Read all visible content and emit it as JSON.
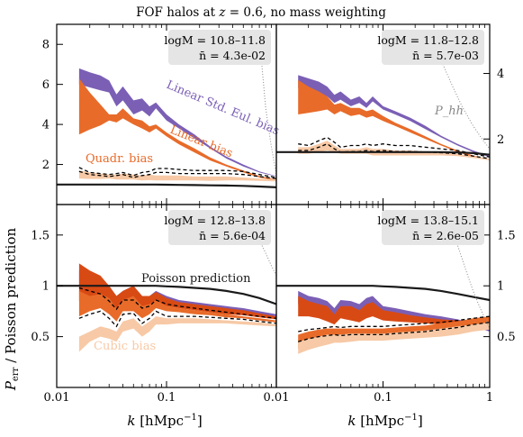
{
  "figure": {
    "title": "FOF halos at z = 0.6, no mass weighting",
    "ylabel": "P_err / Poisson prediction",
    "xlabel": "k [hMpc^-1]"
  },
  "colors": {
    "purple": "#7b5fb5",
    "orange": "#e86b2a",
    "darkorange": "#d84a14",
    "lightorange": "#f7c9a6",
    "poisson": "#1a1a1a",
    "phh": "#888888",
    "infobox": "#e5e5e5"
  },
  "chart_data": [
    {
      "panel": "top-left",
      "type": "area",
      "mass_range": "logM = 10.8–11.8",
      "nbar": "n̄ = 4.3e-02",
      "xscale": "log",
      "xlim": [
        0.01,
        1
      ],
      "ylim": [
        0,
        9
      ],
      "yticks": [
        2,
        4,
        6,
        8
      ],
      "ytick_side": "left",
      "annotations": [
        {
          "text": "Linear Std. Eul. bias",
          "color": "purple"
        },
        {
          "text": "Linear bias",
          "color": "orange"
        },
        {
          "text": "Quadr. bias",
          "color": "orange"
        }
      ],
      "x": [
        0.016,
        0.02,
        0.025,
        0.03,
        0.035,
        0.04,
        0.05,
        0.06,
        0.07,
        0.08,
        0.1,
        0.13,
        0.18,
        0.25,
        0.35,
        0.5,
        0.7,
        1.0
      ],
      "series": [
        {
          "name": "Linear Std. Eul. bias",
          "color": "purple",
          "lower": [
            6.0,
            5.85,
            5.7,
            5.6,
            4.9,
            5.2,
            4.5,
            4.7,
            4.4,
            4.8,
            4.2,
            3.8,
            3.3,
            2.8,
            2.3,
            1.9,
            1.6,
            1.4
          ],
          "upper": [
            6.8,
            6.6,
            6.45,
            6.2,
            5.5,
            5.9,
            5.2,
            5.3,
            4.9,
            5.1,
            4.5,
            4.0,
            3.5,
            2.9,
            2.4,
            2.0,
            1.65,
            1.42
          ]
        },
        {
          "name": "Linear bias",
          "color": "orange",
          "lower": [
            3.5,
            3.75,
            3.95,
            4.2,
            4.1,
            4.3,
            4.0,
            3.8,
            3.6,
            3.8,
            3.4,
            3.0,
            2.6,
            2.2,
            1.9,
            1.6,
            1.35,
            1.2
          ],
          "upper": [
            6.3,
            5.6,
            5.0,
            4.5,
            4.5,
            4.8,
            4.3,
            4.2,
            3.9,
            4.0,
            3.6,
            3.2,
            2.8,
            2.35,
            2.0,
            1.7,
            1.42,
            1.25
          ]
        },
        {
          "name": "Quadr. bias",
          "color": "lightorange",
          "lower": [
            1.3,
            1.28,
            1.28,
            1.3,
            1.25,
            1.25,
            1.25,
            1.2,
            1.22,
            1.2,
            1.2,
            1.2,
            1.2,
            1.18,
            1.2,
            1.2,
            1.18,
            1.15
          ],
          "upper": [
            1.7,
            1.6,
            1.55,
            1.5,
            1.5,
            1.55,
            1.5,
            1.45,
            1.5,
            1.45,
            1.45,
            1.45,
            1.4,
            1.4,
            1.4,
            1.35,
            1.3,
            1.25
          ]
        }
      ],
      "dashed": [
        {
          "values": [
            1.85,
            1.6,
            1.55,
            1.5,
            1.55,
            1.6,
            1.45,
            1.6,
            1.65,
            1.8,
            1.8,
            1.75,
            1.7,
            1.7,
            1.7,
            1.65,
            1.5,
            1.35
          ]
        },
        {
          "values": [
            1.65,
            1.5,
            1.45,
            1.4,
            1.45,
            1.5,
            1.35,
            1.45,
            1.5,
            1.6,
            1.6,
            1.55,
            1.55,
            1.55,
            1.55,
            1.5,
            1.4,
            1.3
          ]
        }
      ],
      "poisson": [
        1.0,
        1.0,
        1.0,
        1.0,
        1.0,
        1.0,
        1.0,
        1.0,
        1.0,
        1.0,
        0.99,
        0.98,
        0.97,
        0.96,
        0.95,
        0.93,
        0.9,
        0.86
      ],
      "phh": {
        "x": [
          0.7,
          0.75,
          0.8,
          0.9,
          1.0
        ],
        "values": [
          8.4,
          6.5,
          4.8,
          2.9,
          1.5
        ]
      }
    },
    {
      "panel": "top-right",
      "type": "area",
      "mass_range": "logM = 11.8–12.8",
      "nbar": "n̄ = 5.7e-03",
      "xscale": "log",
      "xlim": [
        0.01,
        1
      ],
      "ylim": [
        0,
        5.5
      ],
      "yticks": [
        2,
        4
      ],
      "ytick_side": "right",
      "annotations": [
        {
          "text": "P_hh",
          "color": "phh"
        }
      ],
      "x": [
        0.016,
        0.02,
        0.025,
        0.03,
        0.035,
        0.04,
        0.05,
        0.06,
        0.07,
        0.08,
        0.1,
        0.13,
        0.18,
        0.25,
        0.35,
        0.5,
        0.7,
        1.0
      ],
      "series": [
        {
          "name": "Linear Std. Eul. bias",
          "color": "purple",
          "lower": [
            3.55,
            3.45,
            3.4,
            3.3,
            3.1,
            3.2,
            3.0,
            3.1,
            2.95,
            3.15,
            2.9,
            2.75,
            2.55,
            2.3,
            2.05,
            1.8,
            1.6,
            1.45
          ],
          "upper": [
            3.95,
            3.85,
            3.75,
            3.6,
            3.35,
            3.45,
            3.2,
            3.3,
            3.1,
            3.3,
            3.0,
            2.85,
            2.65,
            2.4,
            2.1,
            1.85,
            1.65,
            1.48
          ]
        },
        {
          "name": "Linear bias",
          "color": "orange",
          "lower": [
            2.75,
            2.8,
            2.85,
            2.9,
            2.75,
            2.85,
            2.7,
            2.75,
            2.65,
            2.7,
            2.55,
            2.4,
            2.2,
            2.0,
            1.8,
            1.6,
            1.45,
            1.35
          ],
          "upper": [
            3.8,
            3.6,
            3.45,
            3.3,
            3.05,
            3.1,
            2.95,
            2.95,
            2.85,
            2.9,
            2.7,
            2.5,
            2.3,
            2.08,
            1.85,
            1.65,
            1.5,
            1.38
          ]
        },
        {
          "name": "Quadr. bias",
          "color": "lightorange",
          "lower": [
            1.55,
            1.55,
            1.6,
            1.65,
            1.6,
            1.55,
            1.55,
            1.55,
            1.55,
            1.5,
            1.5,
            1.5,
            1.5,
            1.5,
            1.5,
            1.48,
            1.42,
            1.35
          ],
          "upper": [
            1.75,
            1.75,
            1.85,
            1.95,
            1.8,
            1.7,
            1.7,
            1.7,
            1.75,
            1.7,
            1.7,
            1.65,
            1.65,
            1.62,
            1.6,
            1.55,
            1.48,
            1.4
          ]
        }
      ],
      "dashed": [
        {
          "values": [
            1.85,
            1.8,
            1.95,
            2.05,
            1.9,
            1.75,
            1.8,
            1.8,
            1.85,
            1.8,
            1.85,
            1.8,
            1.8,
            1.75,
            1.7,
            1.65,
            1.55,
            1.45
          ]
        },
        {
          "values": [
            1.65,
            1.65,
            1.75,
            1.85,
            1.7,
            1.6,
            1.62,
            1.62,
            1.65,
            1.62,
            1.65,
            1.62,
            1.62,
            1.6,
            1.58,
            1.55,
            1.48,
            1.4
          ]
        }
      ],
      "poisson": [
        1.6,
        1.6,
        1.6,
        1.6,
        1.6,
        1.6,
        1.6,
        1.6,
        1.6,
        1.6,
        1.6,
        1.6,
        1.6,
        1.6,
        1.6,
        1.59,
        1.57,
        1.52
      ],
      "phh": {
        "x": [
          0.28,
          0.35,
          0.45,
          0.55,
          0.7,
          0.85,
          1.0
        ],
        "values": [
          5.2,
          4.4,
          3.6,
          3.0,
          2.4,
          2.0,
          1.7
        ]
      }
    },
    {
      "panel": "bottom-left",
      "type": "area",
      "mass_range": "logM = 12.8–13.8",
      "nbar": "n̄ = 5.6e-04",
      "xscale": "log",
      "xlim": [
        0.01,
        1
      ],
      "ylim": [
        0,
        1.8
      ],
      "yticks": [
        0.5,
        1,
        1.5
      ],
      "ytick_side": "left",
      "annotations": [
        {
          "text": "Poisson prediction",
          "color": "poisson"
        },
        {
          "text": "Cubic bias",
          "color": "lightorange"
        }
      ],
      "x": [
        0.016,
        0.02,
        0.025,
        0.03,
        0.035,
        0.04,
        0.05,
        0.06,
        0.07,
        0.08,
        0.1,
        0.13,
        0.18,
        0.25,
        0.35,
        0.5,
        0.7,
        1.0
      ],
      "series": [
        {
          "name": "Linear Std. Eul. bias",
          "color": "purple",
          "lower": [
            1.0,
            0.98,
            0.95,
            0.88,
            0.8,
            0.87,
            0.85,
            0.8,
            0.82,
            0.88,
            0.84,
            0.82,
            0.8,
            0.78,
            0.76,
            0.74,
            0.72,
            0.7
          ],
          "upper": [
            1.15,
            1.1,
            1.05,
            1.0,
            0.9,
            0.95,
            1.0,
            0.9,
            0.9,
            0.95,
            0.9,
            0.86,
            0.84,
            0.82,
            0.8,
            0.78,
            0.75,
            0.72
          ]
        },
        {
          "name": "Linear bias",
          "color": "darkorange",
          "lower": [
            0.85,
            0.88,
            0.9,
            0.85,
            0.75,
            0.85,
            0.82,
            0.75,
            0.78,
            0.84,
            0.8,
            0.78,
            0.76,
            0.74,
            0.72,
            0.71,
            0.69,
            0.67
          ],
          "upper": [
            1.22,
            1.15,
            1.1,
            1.0,
            0.9,
            0.95,
            1.0,
            0.9,
            0.9,
            0.94,
            0.88,
            0.84,
            0.82,
            0.8,
            0.78,
            0.76,
            0.73,
            0.7
          ]
        },
        {
          "name": "Quadr. bias",
          "color": "orange",
          "lower": [
            0.7,
            0.75,
            0.78,
            0.72,
            0.65,
            0.75,
            0.75,
            0.68,
            0.72,
            0.78,
            0.75,
            0.74,
            0.72,
            0.71,
            0.69,
            0.68,
            0.66,
            0.64
          ],
          "upper": [
            0.95,
            0.9,
            0.92,
            0.88,
            0.78,
            0.86,
            0.9,
            0.8,
            0.82,
            0.86,
            0.8,
            0.78,
            0.76,
            0.74,
            0.72,
            0.7,
            0.68,
            0.66
          ]
        },
        {
          "name": "Cubic bias",
          "color": "lightorange",
          "lower": [
            0.35,
            0.45,
            0.5,
            0.48,
            0.45,
            0.55,
            0.58,
            0.5,
            0.55,
            0.62,
            0.62,
            0.63,
            0.63,
            0.63,
            0.63,
            0.62,
            0.61,
            0.6
          ],
          "upper": [
            0.5,
            0.55,
            0.6,
            0.58,
            0.55,
            0.65,
            0.68,
            0.6,
            0.65,
            0.7,
            0.68,
            0.68,
            0.68,
            0.67,
            0.66,
            0.65,
            0.64,
            0.62
          ]
        }
      ],
      "dashed": [
        {
          "values": [
            0.98,
            0.95,
            0.92,
            0.85,
            0.77,
            0.86,
            0.86,
            0.78,
            0.8,
            0.86,
            0.82,
            0.8,
            0.78,
            0.76,
            0.74,
            0.72,
            0.7,
            0.68
          ]
        },
        {
          "values": [
            0.68,
            0.72,
            0.75,
            0.68,
            0.6,
            0.72,
            0.73,
            0.63,
            0.68,
            0.75,
            0.7,
            0.7,
            0.7,
            0.69,
            0.68,
            0.67,
            0.65,
            0.63
          ]
        }
      ],
      "poisson": [
        1.0,
        1.0,
        1.0,
        1.0,
        1.0,
        1.0,
        1.0,
        1.0,
        1.0,
        1.0,
        0.995,
        0.99,
        0.98,
        0.97,
        0.95,
        0.92,
        0.88,
        0.82
      ],
      "phh": {
        "x": [
          0.5,
          0.6,
          0.7,
          0.8,
          0.9,
          1.0
        ],
        "values": [
          1.78,
          1.6,
          1.45,
          1.32,
          1.2,
          1.1
        ]
      }
    },
    {
      "panel": "bottom-right",
      "type": "area",
      "mass_range": "logM = 13.8–15.1",
      "nbar": "n̄ = 2.6e-05",
      "xscale": "log",
      "xlim": [
        0.01,
        1
      ],
      "ylim": [
        0,
        1.8
      ],
      "yticks": [
        0.5,
        1,
        1.5
      ],
      "ytick_side": "right",
      "annotations": [],
      "x": [
        0.016,
        0.02,
        0.025,
        0.03,
        0.035,
        0.04,
        0.05,
        0.06,
        0.07,
        0.08,
        0.1,
        0.13,
        0.18,
        0.25,
        0.35,
        0.5,
        0.7,
        1.0
      ],
      "series": [
        {
          "name": "Linear Std. Eul. bias",
          "color": "purple",
          "lower": [
            0.82,
            0.8,
            0.78,
            0.75,
            0.7,
            0.78,
            0.75,
            0.72,
            0.78,
            0.8,
            0.74,
            0.72,
            0.7,
            0.68,
            0.66,
            0.63,
            0.6,
            0.55
          ],
          "upper": [
            0.95,
            0.9,
            0.88,
            0.85,
            0.78,
            0.86,
            0.85,
            0.82,
            0.88,
            0.9,
            0.8,
            0.78,
            0.75,
            0.72,
            0.7,
            0.67,
            0.63,
            0.58
          ]
        },
        {
          "name": "Linear bias",
          "color": "darkorange",
          "lower": [
            0.7,
            0.7,
            0.68,
            0.65,
            0.62,
            0.68,
            0.66,
            0.64,
            0.68,
            0.7,
            0.66,
            0.65,
            0.64,
            0.63,
            0.62,
            0.61,
            0.6,
            0.58
          ],
          "upper": [
            0.9,
            0.85,
            0.82,
            0.8,
            0.72,
            0.8,
            0.8,
            0.76,
            0.82,
            0.84,
            0.76,
            0.74,
            0.71,
            0.69,
            0.67,
            0.66,
            0.65,
            0.63
          ]
        },
        {
          "name": "Quadr. bias",
          "color": "orange",
          "lower": [
            0.38,
            0.42,
            0.45,
            0.47,
            0.48,
            0.48,
            0.49,
            0.5,
            0.5,
            0.5,
            0.5,
            0.51,
            0.52,
            0.53,
            0.55,
            0.58,
            0.6,
            0.62
          ],
          "upper": [
            0.52,
            0.55,
            0.57,
            0.58,
            0.58,
            0.58,
            0.58,
            0.58,
            0.58,
            0.58,
            0.58,
            0.59,
            0.6,
            0.61,
            0.63,
            0.65,
            0.68,
            0.7
          ]
        },
        {
          "name": "Cubic bias",
          "color": "lightorange",
          "lower": [
            0.33,
            0.37,
            0.4,
            0.42,
            0.44,
            0.44,
            0.45,
            0.46,
            0.46,
            0.46,
            0.46,
            0.47,
            0.48,
            0.49,
            0.5,
            0.52,
            0.55,
            0.57
          ],
          "upper": [
            0.45,
            0.48,
            0.5,
            0.52,
            0.52,
            0.52,
            0.53,
            0.53,
            0.53,
            0.53,
            0.53,
            0.54,
            0.55,
            0.56,
            0.58,
            0.6,
            0.62,
            0.64
          ]
        }
      ],
      "dashed": [
        {
          "values": [
            0.55,
            0.57,
            0.58,
            0.59,
            0.6,
            0.59,
            0.6,
            0.6,
            0.6,
            0.6,
            0.6,
            0.61,
            0.62,
            0.63,
            0.64,
            0.66,
            0.68,
            0.7
          ]
        },
        {
          "values": [
            0.45,
            0.48,
            0.5,
            0.51,
            0.52,
            0.51,
            0.52,
            0.52,
            0.52,
            0.52,
            0.52,
            0.53,
            0.54,
            0.55,
            0.57,
            0.59,
            0.62,
            0.64
          ]
        }
      ],
      "poisson": [
        1.0,
        1.0,
        1.0,
        1.0,
        1.0,
        1.0,
        1.0,
        1.0,
        1.0,
        1.0,
        0.995,
        0.99,
        0.98,
        0.97,
        0.95,
        0.92,
        0.89,
        0.86
      ],
      "phh": {
        "x": [
          0.4,
          0.5,
          0.6,
          0.7,
          0.8,
          0.9,
          1.0
        ],
        "values": [
          1.78,
          1.4,
          1.15,
          0.95,
          0.8,
          0.68,
          0.58
        ]
      }
    }
  ]
}
